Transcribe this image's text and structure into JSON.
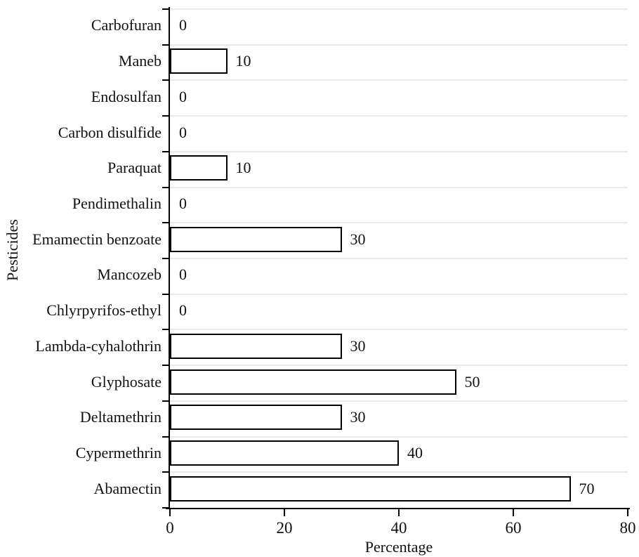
{
  "chart_data": {
    "type": "bar",
    "orientation": "horizontal",
    "title": "",
    "xlabel": "Percentage",
    "ylabel": "Pesticides",
    "categories_top_to_bottom": [
      "Carbofuran",
      "Maneb",
      "Endosulfan",
      "Carbon disulfide",
      "Paraquat",
      "Pendimethalin",
      "Emamectin benzoate",
      "Mancozeb",
      "Chlyrpyrifos-ethyl",
      "Lambda-cyhalothrin",
      "Glyphosate",
      "Deltamethrin",
      "Cypermethrin",
      "Abamectin"
    ],
    "values": [
      0,
      10,
      0,
      0,
      10,
      0,
      30,
      0,
      0,
      30,
      50,
      30,
      40,
      70
    ],
    "value_labels": [
      "0",
      "10",
      "0",
      "0",
      "10",
      "0",
      "30",
      "0",
      "0",
      "30",
      "50",
      "30",
      "40",
      "70"
    ],
    "x_ticks": [
      0,
      20,
      40,
      60,
      80
    ],
    "x_tick_labels": [
      "0",
      "20",
      "40",
      "60",
      "80"
    ],
    "xlim": [
      0,
      80
    ],
    "grid": "horizontal-band-boundaries",
    "legend": "none",
    "style": {
      "bar_fill": "#ffffff",
      "bar_border": "#000000",
      "gridline_color": "#e9e9e9",
      "axis_color": "#000000",
      "text_color": "#111111",
      "background": "#ffffff"
    }
  }
}
